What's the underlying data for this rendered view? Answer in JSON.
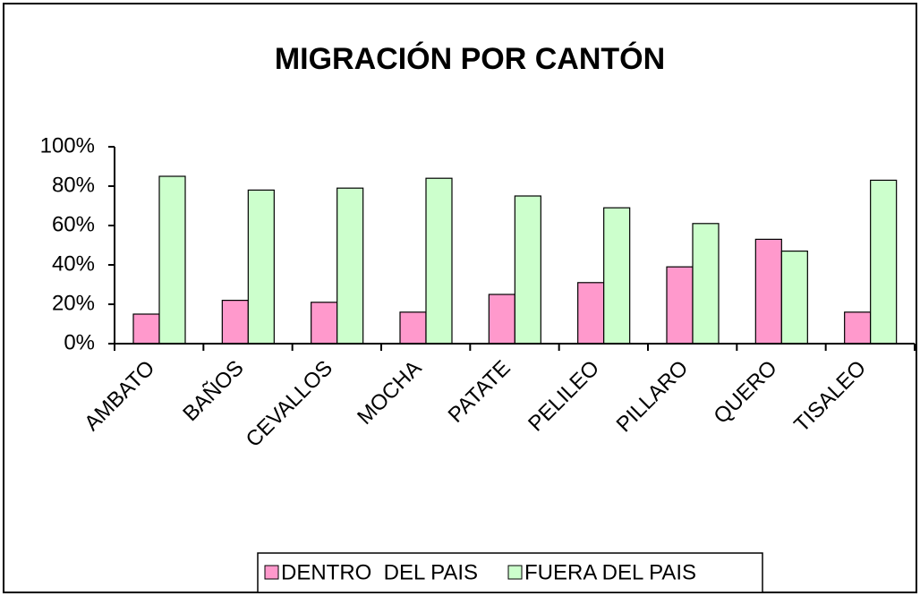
{
  "chart_data": {
    "type": "bar",
    "title": "MIGRACIÓN POR CANTÓN",
    "categories": [
      "AMBATO",
      "BAÑOS",
      "CEVALLOS",
      "MOCHA",
      "PATATE",
      "PELILEO",
      "PILLARO",
      "QUERO",
      "TISALEO"
    ],
    "series": [
      {
        "name": "DENTRO  DEL PAIS",
        "color": "#ff99cc",
        "values": [
          15,
          22,
          21,
          16,
          25,
          31,
          39,
          53,
          16
        ]
      },
      {
        "name": "FUERA DEL PAIS",
        "color": "#ccffcc",
        "values": [
          85,
          78,
          79,
          84,
          75,
          69,
          61,
          47,
          83
        ]
      }
    ],
    "ylim": [
      0,
      100
    ],
    "yticks": [
      {
        "value": 0,
        "label": "0%"
      },
      {
        "value": 20,
        "label": "20%"
      },
      {
        "value": 40,
        "label": "40%"
      },
      {
        "value": 60,
        "label": "60%"
      },
      {
        "value": 80,
        "label": "80%"
      },
      {
        "value": 100,
        "label": "100%"
      }
    ],
    "grid": false,
    "legend": "bottom"
  }
}
